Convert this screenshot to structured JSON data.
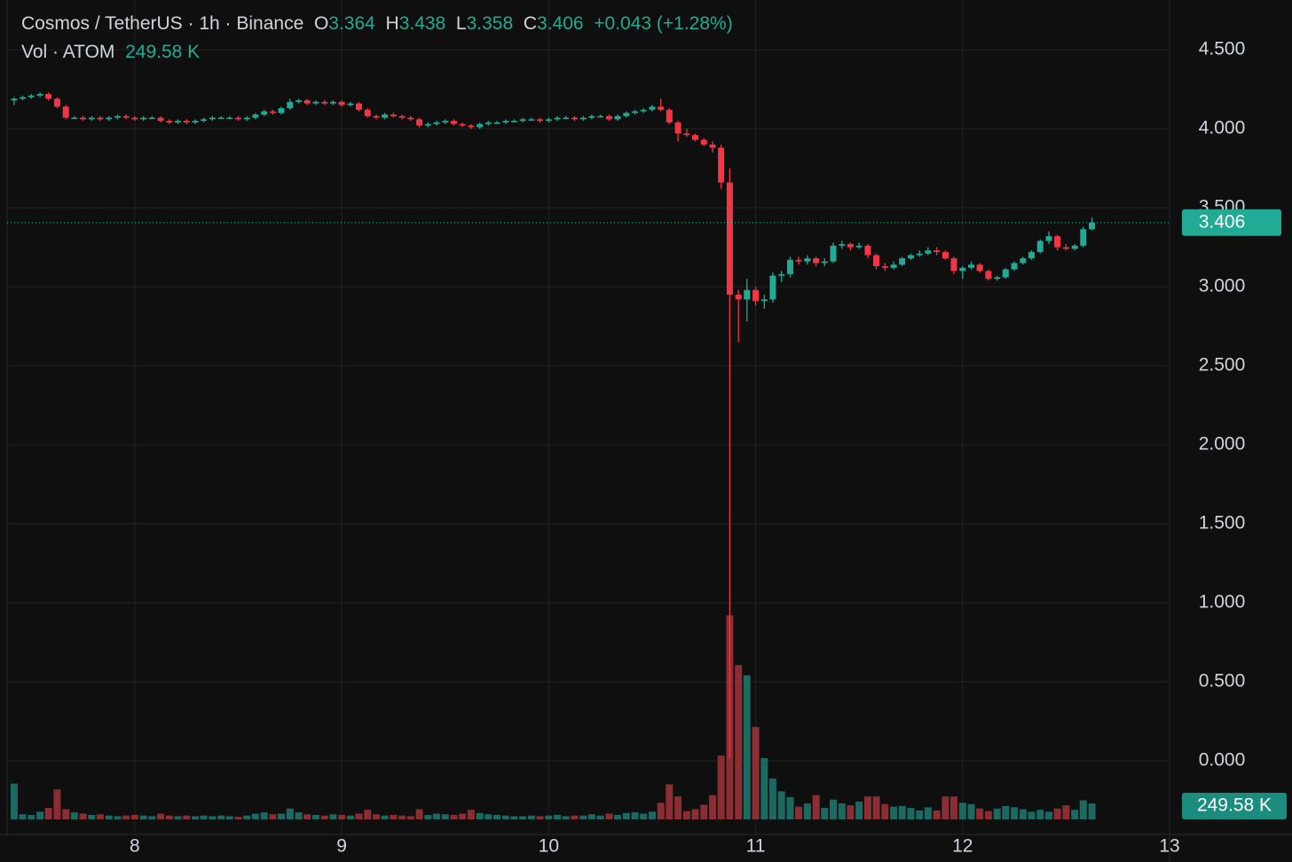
{
  "header": {
    "symbol": "Cosmos / TetherUS · 1h · Binance",
    "open_label": "O",
    "open": "3.364",
    "high_label": "H",
    "high": "3.438",
    "low_label": "L",
    "low": "3.358",
    "close_label": "C",
    "close": "3.406",
    "change": "+0.043 (+1.28%)",
    "volume_label": "Vol · ATOM",
    "volume": "249.58 K"
  },
  "chart_data": {
    "type": "candlestick",
    "up_color": "#22ab94",
    "down_color": "#f23645",
    "volume_up_color": "#1b6a62",
    "volume_down_color": "#8b2e33",
    "grid": true,
    "xlim": [
      7.383,
      13
    ],
    "xticks": [
      8,
      9,
      10,
      11,
      12,
      13
    ],
    "ylim": [
      -0.41,
      4.815
    ],
    "yticks": [
      {
        "value": 0,
        "label": "0.000"
      },
      {
        "value": 0.5,
        "label": "0.500"
      },
      {
        "value": 1,
        "label": "1.000"
      },
      {
        "value": 1.5,
        "label": "1.500"
      },
      {
        "value": 2,
        "label": "2.000"
      },
      {
        "value": 2.5,
        "label": "2.500"
      },
      {
        "value": 3,
        "label": "3.000"
      },
      {
        "value": 3.5,
        "label": "3.500"
      },
      {
        "value": 4,
        "label": "4.000"
      },
      {
        "value": 4.5,
        "label": "4.500"
      }
    ],
    "volume_lim": [
      0,
      3300
    ],
    "last_price_label": "3.406",
    "last_volume_label": "249.58 K",
    "x": [
      7.417,
      7.458,
      7.5,
      7.542,
      7.583,
      7.625,
      7.667,
      7.708,
      7.75,
      7.792,
      7.833,
      7.875,
      7.917,
      7.958,
      8,
      8.042,
      8.083,
      8.125,
      8.167,
      8.208,
      8.25,
      8.292,
      8.333,
      8.375,
      8.417,
      8.458,
      8.5,
      8.542,
      8.583,
      8.625,
      8.667,
      8.708,
      8.75,
      8.792,
      8.833,
      8.875,
      8.917,
      8.958,
      9,
      9.042,
      9.083,
      9.125,
      9.167,
      9.208,
      9.25,
      9.292,
      9.333,
      9.375,
      9.417,
      9.458,
      9.5,
      9.542,
      9.583,
      9.625,
      9.667,
      9.708,
      9.75,
      9.792,
      9.833,
      9.875,
      9.917,
      9.958,
      10,
      10.042,
      10.083,
      10.125,
      10.167,
      10.208,
      10.25,
      10.292,
      10.333,
      10.375,
      10.417,
      10.458,
      10.5,
      10.542,
      10.583,
      10.625,
      10.667,
      10.708,
      10.75,
      10.792,
      10.833,
      10.875,
      10.917,
      10.958,
      11,
      11.042,
      11.083,
      11.125,
      11.167,
      11.208,
      11.25,
      11.292,
      11.333,
      11.375,
      11.417,
      11.458,
      11.5,
      11.542,
      11.583,
      11.625,
      11.667,
      11.708,
      11.75,
      11.792,
      11.833,
      11.875,
      11.917,
      11.958,
      12,
      12.042,
      12.083,
      12.125,
      12.167,
      12.208,
      12.25,
      12.292,
      12.333,
      12.375,
      12.417,
      12.458,
      12.5,
      12.542,
      12.583,
      12.625
    ],
    "ohlc": [
      [
        4.18,
        4.2,
        4.15,
        4.19
      ],
      [
        4.19,
        4.21,
        4.18,
        4.2
      ],
      [
        4.2,
        4.22,
        4.19,
        4.21
      ],
      [
        4.21,
        4.23,
        4.2,
        4.22
      ],
      [
        4.22,
        4.23,
        4.18,
        4.19
      ],
      [
        4.19,
        4.2,
        4.13,
        4.14
      ],
      [
        4.14,
        4.15,
        4.06,
        4.07
      ],
      [
        4.07,
        4.08,
        4.06,
        4.07
      ],
      [
        4.07,
        4.08,
        4.05,
        4.06
      ],
      [
        4.06,
        4.08,
        4.05,
        4.07
      ],
      [
        4.07,
        4.08,
        4.05,
        4.06
      ],
      [
        4.06,
        4.08,
        4.05,
        4.07
      ],
      [
        4.07,
        4.09,
        4.06,
        4.08
      ],
      [
        4.08,
        4.09,
        4.06,
        4.07
      ],
      [
        4.07,
        4.08,
        4.05,
        4.06
      ],
      [
        4.06,
        4.08,
        4.05,
        4.07
      ],
      [
        4.07,
        4.08,
        4.06,
        4.07
      ],
      [
        4.07,
        4.08,
        4.04,
        4.05
      ],
      [
        4.05,
        4.06,
        4.03,
        4.04
      ],
      [
        4.04,
        4.06,
        4.03,
        4.05
      ],
      [
        4.05,
        4.06,
        4.03,
        4.04
      ],
      [
        4.04,
        4.06,
        4.03,
        4.05
      ],
      [
        4.05,
        4.07,
        4.04,
        4.06
      ],
      [
        4.06,
        4.08,
        4.05,
        4.07
      ],
      [
        4.07,
        4.08,
        4.06,
        4.07
      ],
      [
        4.07,
        4.08,
        4.06,
        4.07
      ],
      [
        4.07,
        4.08,
        4.05,
        4.06
      ],
      [
        4.06,
        4.08,
        4.05,
        4.07
      ],
      [
        4.07,
        4.1,
        4.06,
        4.09
      ],
      [
        4.09,
        4.12,
        4.08,
        4.11
      ],
      [
        4.11,
        4.12,
        4.09,
        4.1
      ],
      [
        4.1,
        4.14,
        4.09,
        4.13
      ],
      [
        4.13,
        4.19,
        4.12,
        4.17
      ],
      [
        4.17,
        4.19,
        4.16,
        4.18
      ],
      [
        4.18,
        4.19,
        4.15,
        4.16
      ],
      [
        4.16,
        4.18,
        4.15,
        4.17
      ],
      [
        4.17,
        4.18,
        4.15,
        4.16
      ],
      [
        4.16,
        4.18,
        4.15,
        4.17
      ],
      [
        4.17,
        4.18,
        4.14,
        4.15
      ],
      [
        4.15,
        4.17,
        4.14,
        4.16
      ],
      [
        4.16,
        4.17,
        4.11,
        4.12
      ],
      [
        4.12,
        4.13,
        4.07,
        4.08
      ],
      [
        4.08,
        4.09,
        4.06,
        4.07
      ],
      [
        4.07,
        4.1,
        4.06,
        4.09
      ],
      [
        4.09,
        4.1,
        4.07,
        4.08
      ],
      [
        4.08,
        4.09,
        4.06,
        4.07
      ],
      [
        4.07,
        4.08,
        4.05,
        4.06
      ],
      [
        4.06,
        4.07,
        4.01,
        4.02
      ],
      [
        4.02,
        4.04,
        4.01,
        4.03
      ],
      [
        4.03,
        4.05,
        4.02,
        4.04
      ],
      [
        4.04,
        4.06,
        4.03,
        4.05
      ],
      [
        4.05,
        4.06,
        4.02,
        4.03
      ],
      [
        4.03,
        4.04,
        4.01,
        4.02
      ],
      [
        4.02,
        4.03,
        4,
        4.01
      ],
      [
        4.01,
        4.04,
        4,
        4.03
      ],
      [
        4.03,
        4.05,
        4.02,
        4.04
      ],
      [
        4.04,
        4.05,
        4.03,
        4.04
      ],
      [
        4.04,
        4.06,
        4.03,
        4.05
      ],
      [
        4.05,
        4.06,
        4.04,
        4.05
      ],
      [
        4.05,
        4.07,
        4.04,
        4.06
      ],
      [
        4.06,
        4.07,
        4.05,
        4.06
      ],
      [
        4.06,
        4.07,
        4.04,
        4.05
      ],
      [
        4.05,
        4.07,
        4.04,
        4.06
      ],
      [
        4.06,
        4.08,
        4.05,
        4.07
      ],
      [
        4.07,
        4.08,
        4.06,
        4.07
      ],
      [
        4.07,
        4.08,
        4.05,
        4.06
      ],
      [
        4.06,
        4.08,
        4.05,
        4.07
      ],
      [
        4.07,
        4.09,
        4.06,
        4.08
      ],
      [
        4.08,
        4.09,
        4.07,
        4.08
      ],
      [
        4.08,
        4.09,
        4.05,
        4.06
      ],
      [
        4.06,
        4.09,
        4.05,
        4.08
      ],
      [
        4.08,
        4.11,
        4.07,
        4.1
      ],
      [
        4.1,
        4.12,
        4.09,
        4.11
      ],
      [
        4.11,
        4.13,
        4.1,
        4.12
      ],
      [
        4.12,
        4.15,
        4.11,
        4.14
      ],
      [
        4.14,
        4.19,
        4.11,
        4.12
      ],
      [
        4.12,
        4.13,
        4.03,
        4.04
      ],
      [
        4.04,
        4.05,
        3.92,
        3.97
      ],
      [
        3.97,
        4,
        3.95,
        3.96
      ],
      [
        3.96,
        3.97,
        3.92,
        3.93
      ],
      [
        3.93,
        3.94,
        3.89,
        3.9
      ],
      [
        3.9,
        3.92,
        3.85,
        3.88
      ],
      [
        3.88,
        3.9,
        3.62,
        3.66
      ],
      [
        3.66,
        3.75,
        0.02,
        2.95
      ],
      [
        2.95,
        2.98,
        2.65,
        2.92
      ],
      [
        2.92,
        3.05,
        2.78,
        2.98
      ],
      [
        2.98,
        3,
        2.88,
        2.91
      ],
      [
        2.91,
        2.95,
        2.86,
        2.92
      ],
      [
        2.92,
        3.09,
        2.9,
        3.07
      ],
      [
        3.07,
        3.1,
        3.03,
        3.08
      ],
      [
        3.08,
        3.19,
        3.06,
        3.17
      ],
      [
        3.17,
        3.19,
        3.14,
        3.16
      ],
      [
        3.16,
        3.2,
        3.14,
        3.18
      ],
      [
        3.18,
        3.19,
        3.13,
        3.15
      ],
      [
        3.15,
        3.18,
        3.13,
        3.16
      ],
      [
        3.16,
        3.28,
        3.15,
        3.26
      ],
      [
        3.26,
        3.29,
        3.24,
        3.27
      ],
      [
        3.27,
        3.28,
        3.23,
        3.25
      ],
      [
        3.25,
        3.28,
        3.24,
        3.26
      ],
      [
        3.26,
        3.27,
        3.18,
        3.2
      ],
      [
        3.2,
        3.21,
        3.11,
        3.13
      ],
      [
        3.13,
        3.15,
        3.1,
        3.12
      ],
      [
        3.12,
        3.16,
        3.11,
        3.14
      ],
      [
        3.14,
        3.19,
        3.13,
        3.18
      ],
      [
        3.18,
        3.21,
        3.17,
        3.2
      ],
      [
        3.2,
        3.23,
        3.19,
        3.21
      ],
      [
        3.21,
        3.25,
        3.2,
        3.23
      ],
      [
        3.23,
        3.25,
        3.2,
        3.22
      ],
      [
        3.22,
        3.23,
        3.17,
        3.18
      ],
      [
        3.18,
        3.19,
        3.08,
        3.1
      ],
      [
        3.1,
        3.13,
        3.05,
        3.12
      ],
      [
        3.12,
        3.16,
        3.11,
        3.14
      ],
      [
        3.14,
        3.15,
        3.09,
        3.1
      ],
      [
        3.1,
        3.11,
        3.04,
        3.05
      ],
      [
        3.05,
        3.07,
        3.04,
        3.06
      ],
      [
        3.06,
        3.12,
        3.05,
        3.11
      ],
      [
        3.11,
        3.16,
        3.1,
        3.15
      ],
      [
        3.15,
        3.19,
        3.14,
        3.18
      ],
      [
        3.18,
        3.23,
        3.17,
        3.22
      ],
      [
        3.22,
        3.3,
        3.21,
        3.29
      ],
      [
        3.29,
        3.35,
        3.27,
        3.32
      ],
      [
        3.32,
        3.33,
        3.23,
        3.25
      ],
      [
        3.25,
        3.27,
        3.23,
        3.24
      ],
      [
        3.24,
        3.27,
        3.23,
        3.26
      ],
      [
        3.26,
        3.38,
        3.25,
        3.364
      ],
      [
        3.364,
        3.438,
        3.358,
        3.406
      ]
    ],
    "volume": [
      560,
      80,
      70,
      120,
      180,
      470,
      160,
      110,
      90,
      70,
      80,
      60,
      50,
      60,
      70,
      60,
      50,
      90,
      60,
      50,
      60,
      50,
      60,
      50,
      60,
      50,
      40,
      60,
      90,
      110,
      80,
      90,
      170,
      110,
      80,
      70,
      60,
      80,
      70,
      60,
      90,
      150,
      80,
      60,
      70,
      60,
      50,
      160,
      70,
      90,
      80,
      70,
      90,
      150,
      100,
      80,
      70,
      60,
      50,
      50,
      60,
      50,
      60,
      70,
      50,
      60,
      60,
      80,
      60,
      90,
      70,
      100,
      110,
      90,
      120,
      260,
      550,
      360,
      130,
      160,
      230,
      380,
      1000,
      3200,
      2420,
      2260,
      1450,
      960,
      640,
      440,
      350,
      200,
      250,
      380,
      180,
      310,
      250,
      220,
      280,
      360,
      360,
      240,
      200,
      210,
      180,
      140,
      190,
      140,
      360,
      360,
      260,
      240,
      170,
      130,
      170,
      210,
      190,
      160,
      120,
      150,
      120,
      170,
      220,
      150,
      300,
      249.58
    ]
  }
}
